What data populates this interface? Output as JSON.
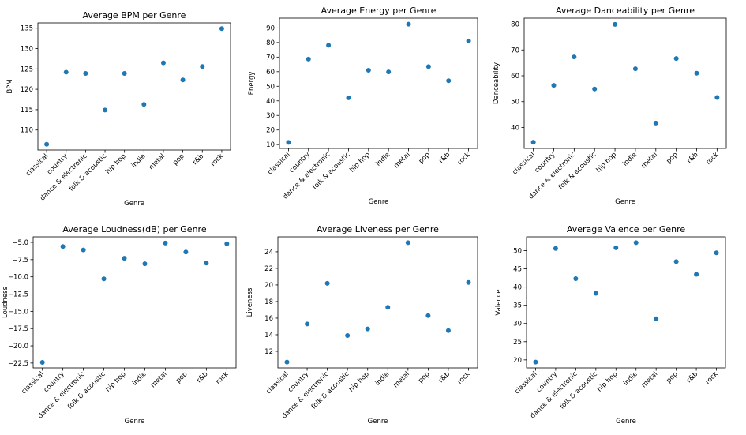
{
  "chart_data": [
    {
      "type": "scatter",
      "title": "Average BPM per Genre",
      "xlabel": "Genre",
      "ylabel": "BPM",
      "categories": [
        "classical",
        "country",
        "dance & electronic",
        "folk & acoustic",
        "hip hop",
        "indie",
        "metal",
        "pop",
        "r&b",
        "rock"
      ],
      "values": [
        106.5,
        124.2,
        123.9,
        114.9,
        123.9,
        116.3,
        126.5,
        122.3,
        125.6,
        134.9
      ],
      "yticks": [
        110,
        115,
        120,
        125,
        130,
        135
      ],
      "ylim": [
        105.1,
        136.3
      ],
      "grid": false
    },
    {
      "type": "scatter",
      "title": "Average Energy per Genre",
      "xlabel": "Genre",
      "ylabel": "Energy",
      "categories": [
        "classical",
        "country",
        "dance & electronic",
        "folk & acoustic",
        "hip hop",
        "indie",
        "metal",
        "pop",
        "r&b",
        "rock"
      ],
      "values": [
        11.5,
        68.6,
        78.1,
        42.1,
        61.0,
        59.8,
        92.6,
        63.5,
        53.8,
        81.1
      ],
      "yticks": [
        10,
        20,
        30,
        40,
        50,
        60,
        70,
        80,
        90
      ],
      "ylim": [
        7.4,
        96.7
      ],
      "grid": false
    },
    {
      "type": "scatter",
      "title": "Average Danceability per Genre",
      "xlabel": "Genre",
      "ylabel": "Danceability",
      "categories": [
        "classical",
        "country",
        "dance & electronic",
        "folk & acoustic",
        "hip hop",
        "indie",
        "metal",
        "pop",
        "r&b",
        "rock"
      ],
      "values": [
        34.3,
        56.3,
        67.3,
        54.9,
        79.9,
        62.7,
        41.7,
        66.7,
        61.0,
        51.6
      ],
      "yticks": [
        40,
        50,
        60,
        70,
        80
      ],
      "ylim": [
        31.9,
        82.3
      ],
      "grid": false
    },
    {
      "type": "scatter",
      "title": "Average Loudness(dB) per Genre",
      "xlabel": "Genre",
      "ylabel": "Loudness",
      "categories": [
        "classical",
        "country",
        "dance & electronic",
        "folk & acoustic",
        "hip hop",
        "indie",
        "metal",
        "pop",
        "r&b",
        "rock"
      ],
      "values": [
        -22.4,
        -5.6,
        -6.1,
        -10.3,
        -7.3,
        -8.1,
        -5.1,
        -6.4,
        -8.0,
        -5.2
      ],
      "yticks": [
        -22.5,
        -20.0,
        -17.5,
        -15.0,
        -12.5,
        -10.0,
        -7.5,
        -5.0
      ],
      "yticklabels": [
        "−22.5",
        "−20.0",
        "−17.5",
        "−15.0",
        "−12.5",
        "−10.0",
        "−7.5",
        "−5.0"
      ],
      "ylim": [
        -23.2,
        -4.2
      ],
      "grid": false
    },
    {
      "type": "scatter",
      "title": "Average Liveness per Genre",
      "xlabel": "Genre",
      "ylabel": "Liveness",
      "categories": [
        "classical",
        "country",
        "dance & electronic",
        "folk & acoustic",
        "hip hop",
        "indie",
        "metal",
        "pop",
        "r&b",
        "rock"
      ],
      "values": [
        10.7,
        15.3,
        20.2,
        13.9,
        14.7,
        17.3,
        25.1,
        16.3,
        14.5,
        20.3
      ],
      "yticks": [
        12,
        14,
        16,
        18,
        20,
        22,
        24
      ],
      "ylim": [
        10.0,
        25.8
      ],
      "grid": false
    },
    {
      "type": "scatter",
      "title": "Average Valence per Genre",
      "xlabel": "Genre",
      "ylabel": "Valence",
      "categories": [
        "classical",
        "country",
        "dance & electronic",
        "folk & acoustic",
        "hip hop",
        "indie",
        "metal",
        "pop",
        "r&b",
        "rock"
      ],
      "values": [
        19.4,
        50.6,
        42.3,
        38.3,
        50.8,
        52.2,
        31.3,
        47.0,
        43.5,
        49.4
      ],
      "yticks": [
        20,
        25,
        30,
        35,
        40,
        45,
        50
      ],
      "ylim": [
        17.8,
        53.8
      ],
      "grid": false
    }
  ],
  "colors": {
    "marker": "#1f77b4",
    "axes": "#000000",
    "background": "#ffffff"
  }
}
